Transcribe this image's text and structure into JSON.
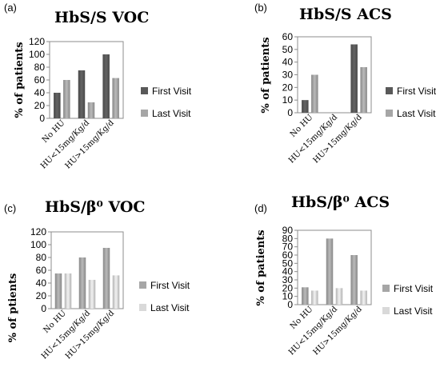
{
  "chart_data": [
    {
      "type": "bar",
      "panel_label": "(a)",
      "title": "HbS/S VOC",
      "ylabel": "% of patients",
      "categories": [
        "No HU",
        "HU<15mg/Kg/d",
        "HU>15mg/Kg/d"
      ],
      "ylim": [
        0,
        120
      ],
      "yticks": [
        0,
        20,
        40,
        60,
        80,
        100,
        120
      ],
      "series": [
        {
          "name": "First Visit",
          "values": [
            40,
            75,
            100
          ],
          "color": "#595959"
        },
        {
          "name": "Last Visit",
          "values": [
            60,
            25,
            63
          ],
          "color": "#a6a6a6"
        }
      ],
      "legend": "right",
      "grid": false
    },
    {
      "type": "bar",
      "panel_label": "(b)",
      "title": "HbS/S ACS",
      "ylabel": "% of patients",
      "categories": [
        "No HU",
        "HU<15mg/Kg/d",
        "HU>15mg/Kg/d"
      ],
      "ylim": [
        0,
        60
      ],
      "yticks": [
        0,
        10,
        20,
        30,
        40,
        50,
        60
      ],
      "series": [
        {
          "name": "First Visit",
          "values": [
            10,
            0,
            54
          ],
          "color": "#595959"
        },
        {
          "name": "Last Visit",
          "values": [
            30,
            0,
            36
          ],
          "color": "#a6a6a6"
        }
      ],
      "legend": "right",
      "grid": false
    },
    {
      "type": "bar",
      "panel_label": "(c)",
      "title": "HbS/β⁰ VOC",
      "ylabel": "% of ptients",
      "categories": [
        "No HU",
        "HU<15mg/Kg/d",
        "HU>15mg/Kg/d"
      ],
      "ylim": [
        0,
        120
      ],
      "yticks": [
        0,
        20,
        40,
        60,
        80,
        100,
        120
      ],
      "series": [
        {
          "name": "First Visit",
          "values": [
            55,
            80,
            95
          ],
          "color": "#a6a6a6"
        },
        {
          "name": "Last Visit",
          "values": [
            55,
            45,
            52
          ],
          "color": "#d9d9d9"
        }
      ],
      "legend": "right",
      "grid": false
    },
    {
      "type": "bar",
      "panel_label": "(d)",
      "title": "HbS/β⁰ ACS",
      "ylabel": "% of patients",
      "categories": [
        "No HU",
        "HU<15mg/Kg/d",
        "HU>15mg/Kg/d"
      ],
      "ylim": [
        0,
        90
      ],
      "yticks": [
        0,
        10,
        20,
        30,
        40,
        50,
        60,
        70,
        80,
        90
      ],
      "series": [
        {
          "name": "First Visit",
          "values": [
            21,
            80,
            60
          ],
          "color": "#a6a6a6"
        },
        {
          "name": "Last Visit",
          "values": [
            17,
            20,
            17
          ],
          "color": "#d9d9d9"
        }
      ],
      "legend": "right",
      "grid": false
    }
  ]
}
